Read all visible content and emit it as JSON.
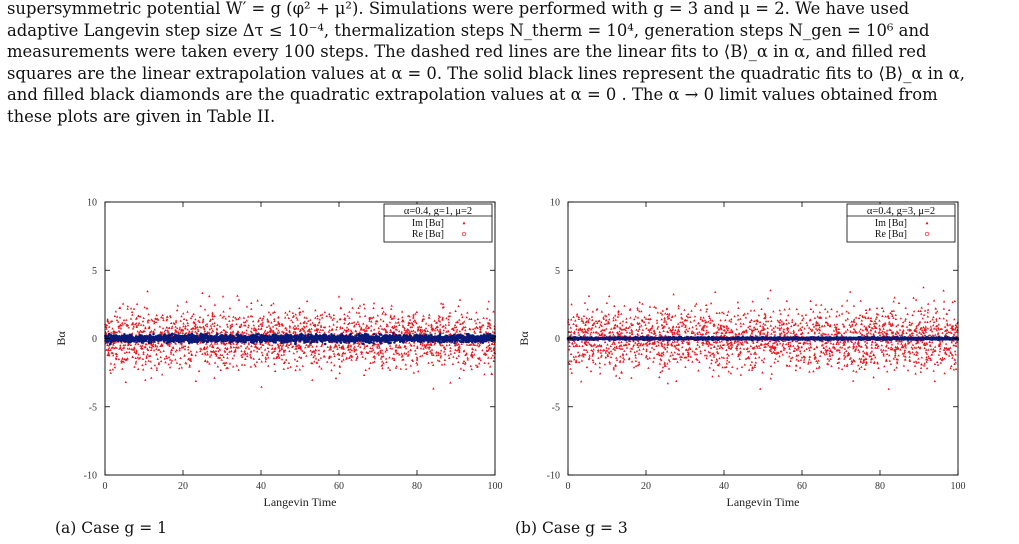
{
  "paragraph": {
    "lines": [
      "supersymmetric potential W′ = g (φ² + μ²). Simulations were performed with g = 3 and μ = 2. We have used",
      "adaptive Langevin step size Δτ ≤ 10⁻⁴, thermalization steps N_therm = 10⁴, generation steps N_gen = 10⁶ and",
      "measurements were taken every 100 steps. The dashed red lines are the linear fits to ⟨B⟩_α in α, and filled red",
      "squares are the linear extrapolation values at α = 0. The solid black lines represent the quadratic fits to ⟨B⟩_α in α,",
      "and filled black diamonds are the quadratic extrapolation values at α = 0 . The α → 0 limit values obtained from",
      "these plots are given in Table II."
    ]
  },
  "colors": {
    "im_series": "#e8141c",
    "re_series": "#0a1a78",
    "axis": "#000000"
  },
  "chart_data": [
    {
      "type": "scatter",
      "caption": "(a) Case g = 1",
      "legend_title": "α=0.4, g=1, μ=2",
      "legend_position": "top-right",
      "xlabel": "Langevin Time",
      "ylabel": "Bα",
      "xlim": [
        0,
        100
      ],
      "ylim": [
        -10,
        10
      ],
      "xticks": [
        "0",
        "20",
        "40",
        "60",
        "80",
        "100"
      ],
      "yticks": [
        "10",
        "5",
        "0",
        "-5",
        "-10"
      ],
      "grid": false,
      "series": [
        {
          "name": "Im [Bα]",
          "marker": "triangle",
          "spread": 1.05,
          "max_abs": 4.0
        },
        {
          "name": "Re [Bα]",
          "marker": "circle",
          "spread": 0.12,
          "max_abs": 0.4
        }
      ]
    },
    {
      "type": "scatter",
      "caption": "(b) Case g = 3",
      "legend_title": "α=0.4, g=3, μ=2",
      "legend_position": "top-right",
      "xlabel": "Langevin Time",
      "ylabel": "Bα",
      "xlim": [
        0,
        100
      ],
      "ylim": [
        -10,
        10
      ],
      "xticks": [
        "0",
        "20",
        "40",
        "60",
        "80",
        "100"
      ],
      "yticks": [
        "10",
        "5",
        "0",
        "-5",
        "-10"
      ],
      "grid": false,
      "series": [
        {
          "name": "Im [Bα]",
          "marker": "triangle",
          "spread": 1.1,
          "max_abs": 4.2
        },
        {
          "name": "Re [Bα]",
          "marker": "circle",
          "spread": 0.04,
          "max_abs": 0.12
        }
      ]
    }
  ]
}
